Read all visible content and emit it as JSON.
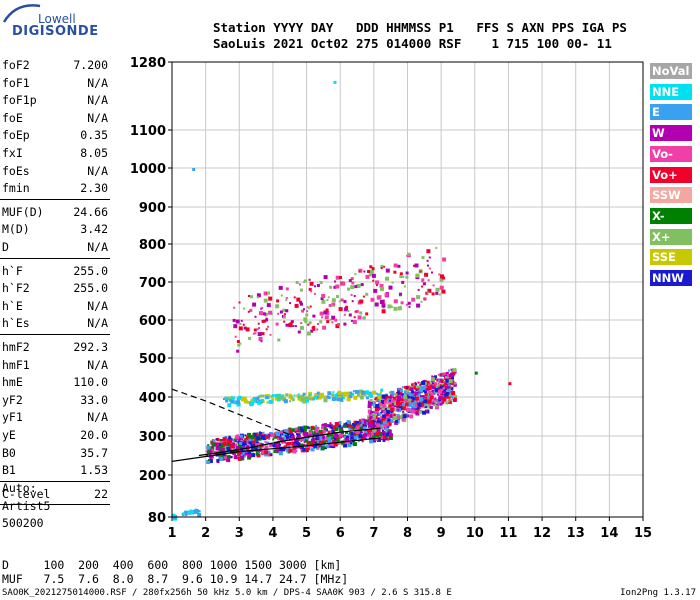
{
  "logo": {
    "top": "Lowell",
    "bottom": "DIGISONDE"
  },
  "header": {
    "line1": "Station YYYY DAY   DDD HHMMSS P1   FFS S AXN PPS IGA PS",
    "line2": "SaoLuis 2021 Oct02 275 014000 RSF    1 715 100 00- 11"
  },
  "params": [
    {
      "group": [
        {
          "k": "foF2",
          "v": "7.200"
        },
        {
          "k": "foF1",
          "v": "N/A"
        },
        {
          "k": "foF1p",
          "v": "N/A"
        },
        {
          "k": "foE",
          "v": "N/A"
        },
        {
          "k": "foEp",
          "v": "0.35"
        },
        {
          "k": "fxI",
          "v": "8.05"
        },
        {
          "k": "foEs",
          "v": "N/A"
        },
        {
          "k": "fmin",
          "v": "2.30"
        }
      ]
    },
    {
      "group": [
        {
          "k": "MUF(D)",
          "v": "24.66"
        },
        {
          "k": "M(D)",
          "v": "3.42"
        },
        {
          "k": "D",
          "v": "N/A"
        }
      ]
    },
    {
      "group": [
        {
          "k": "h`F",
          "v": "255.0"
        },
        {
          "k": "h`F2",
          "v": "255.0"
        },
        {
          "k": "h`E",
          "v": "N/A"
        },
        {
          "k": "h`Es",
          "v": "N/A"
        }
      ]
    },
    {
      "group": [
        {
          "k": "hmF2",
          "v": "292.3"
        },
        {
          "k": "hmF1",
          "v": "N/A"
        },
        {
          "k": "hmE",
          "v": "110.0"
        },
        {
          "k": "yF2",
          "v": "33.0"
        },
        {
          "k": "yF1",
          "v": "N/A"
        },
        {
          "k": "yE",
          "v": "20.0"
        },
        {
          "k": "B0",
          "v": "35.7"
        },
        {
          "k": "B1",
          "v": "1.53"
        }
      ]
    },
    {
      "group": [
        {
          "k": "C-level",
          "v": "22"
        }
      ]
    }
  ],
  "auto": [
    "Auto:",
    "Artist5",
    "500200"
  ],
  "legend": [
    {
      "label": "NoVal",
      "color": "#a6a6a6"
    },
    {
      "label": "NNE",
      "color": "#00e0f0"
    },
    {
      "label": "E",
      "color": "#3aa0f0"
    },
    {
      "label": "W",
      "color": "#b000b0"
    },
    {
      "label": "Vo-",
      "color": "#f040a8"
    },
    {
      "label": "Vo+",
      "color": "#f0002a"
    },
    {
      "label": "SSW",
      "color": "#f4a6a0"
    },
    {
      "label": "X-",
      "color": "#008000"
    },
    {
      "label": "X+",
      "color": "#80c060"
    },
    {
      "label": "SSE",
      "color": "#c8c800"
    },
    {
      "label": "NNW",
      "color": "#1a1ad0"
    }
  ],
  "bottom_table": {
    "row1": "D     100  200  400  600  800 1000 1500 3000 [km]",
    "row2": "MUF   7.5  7.6  8.0  8.7  9.6 10.9 14.7 24.7 [MHz]"
  },
  "footer": {
    "left": "SAO0K_2021275014000.RSF / 280fx256h 50 kHz 5.0 km / DPS-4 SAA0K 903 / 2.6 S 315.8 E",
    "right": "Ion2Png 1.3.17"
  },
  "chart_data": {
    "type": "scatter",
    "title": "",
    "xlabel": "",
    "ylabel": "",
    "xlim": [
      1,
      15
    ],
    "ylim": [
      80,
      1280
    ],
    "x_ticks": [
      1,
      2,
      3,
      4,
      5,
      6,
      7,
      8,
      9,
      10,
      11,
      12,
      13,
      14,
      15
    ],
    "y_ticks": [
      80,
      200,
      300,
      400,
      500,
      600,
      700,
      800,
      900,
      1000,
      1100,
      1280
    ],
    "grid": true,
    "clusters": [
      {
        "desc": "O trace F2 low",
        "x": [
          2.0,
          7.5
        ],
        "y": [
          240,
          350
        ],
        "colors": [
          "#f0002a",
          "#b000b0",
          "#f040a8",
          "#1a1ad0",
          "#3aa0f0",
          "#008000"
        ],
        "density": 900
      },
      {
        "desc": "X trace F2",
        "x": [
          6.8,
          9.4
        ],
        "y": [
          320,
          470
        ],
        "colors": [
          "#f0002a",
          "#b000b0",
          "#f040a8",
          "#3aa0f0",
          "#1a1ad0",
          "#80c060"
        ],
        "density": 650
      },
      {
        "desc": "second hop",
        "x": [
          2.8,
          9.1
        ],
        "y": [
          530,
          790
        ],
        "colors": [
          "#b000b0",
          "#f040a8",
          "#f0002a",
          "#80c060"
        ],
        "density": 300
      },
      {
        "desc": "spread 400",
        "x": [
          2.5,
          7.2
        ],
        "y": [
          385,
          420
        ],
        "colors": [
          "#c8c800",
          "#3aa0f0",
          "#80c060",
          "#00e0f0"
        ],
        "density": 180
      },
      {
        "desc": "low E",
        "x": [
          1.0,
          1.8
        ],
        "y": [
          80,
          105
        ],
        "colors": [
          "#3aa0f0",
          "#00e0f0"
        ],
        "density": 25
      }
    ],
    "profile_lines": [
      {
        "name": "",
        "style": "solid",
        "points": [
          [
            1.0,
            235
          ],
          [
            3.0,
            260
          ],
          [
            5.0,
            275
          ],
          [
            7.2,
            295
          ]
        ]
      },
      {
        "name": "",
        "style": "solid",
        "points": [
          [
            1.8,
            250
          ],
          [
            3.0,
            265
          ],
          [
            4.5,
            290
          ],
          [
            6.0,
            310
          ],
          [
            7.2,
            320
          ]
        ]
      },
      {
        "name": "",
        "style": "dashed",
        "points": [
          [
            1.0,
            420
          ],
          [
            2.0,
            390
          ],
          [
            3.0,
            355
          ],
          [
            4.0,
            320
          ],
          [
            4.6,
            300
          ]
        ]
      }
    ]
  }
}
